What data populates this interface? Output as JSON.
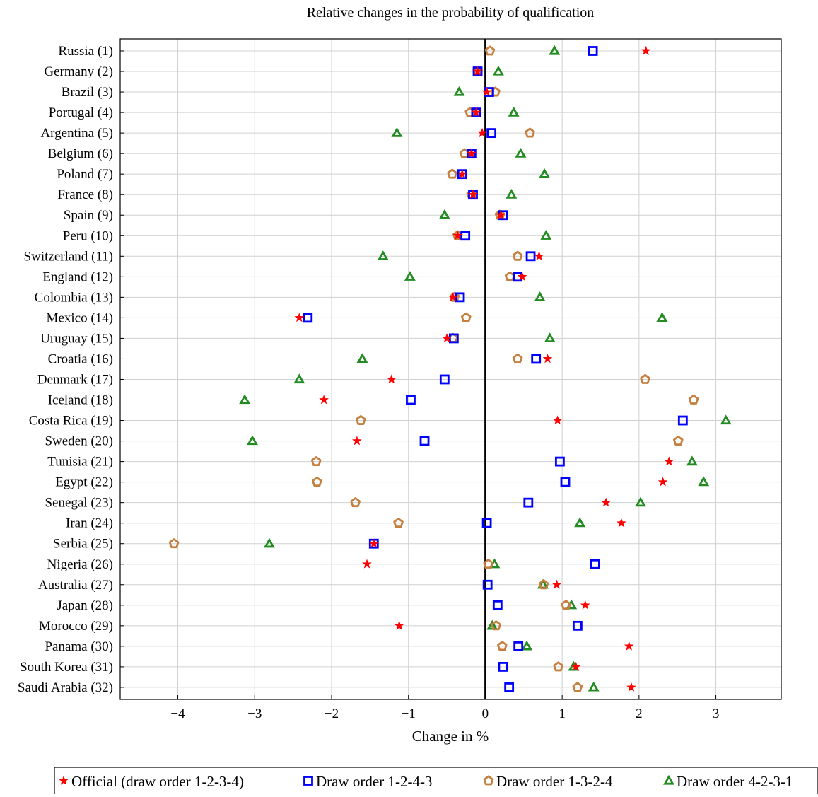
{
  "chart_data": {
    "type": "scatter",
    "title": "Relative changes in the probability of qualification",
    "xlabel": "Change in %",
    "ylabel": "",
    "xlim": [
      -4.75,
      3.85
    ],
    "xticks": [
      -4,
      -3,
      -2,
      -1,
      0,
      1,
      2,
      3
    ],
    "xtick_labels": [
      "−4",
      "−3",
      "−2",
      "−1",
      "0",
      "1",
      "2",
      "3"
    ],
    "grid": true,
    "legend_position": "bottom",
    "categories": [
      "Russia (1)",
      "Germany (2)",
      "Brazil (3)",
      "Portugal (4)",
      "Argentina (5)",
      "Belgium (6)",
      "Poland (7)",
      "France (8)",
      "Spain (9)",
      "Peru (10)",
      "Switzerland (11)",
      "England (12)",
      "Colombia (13)",
      "Mexico (14)",
      "Uruguay (15)",
      "Croatia (16)",
      "Denmark (17)",
      "Iceland (18)",
      "Costa Rica (19)",
      "Sweden (20)",
      "Tunisia (21)",
      "Egypt (22)",
      "Senegal (23)",
      "Iran (24)",
      "Serbia (25)",
      "Nigeria (26)",
      "Australia (27)",
      "Japan (28)",
      "Morocco (29)",
      "Panama (30)",
      "South Korea (31)",
      "Saudi Arabia (32)"
    ],
    "series": [
      {
        "name": "Official (draw order 1-2-3-4)",
        "marker": "star",
        "color": "#ff0000",
        "values": [
          2.09,
          -0.1,
          0.02,
          -0.12,
          -0.04,
          -0.18,
          -0.3,
          -0.16,
          0.2,
          -0.36,
          0.7,
          0.48,
          -0.42,
          -2.42,
          -0.5,
          0.81,
          -1.22,
          -2.1,
          0.94,
          -1.67,
          2.39,
          2.31,
          1.57,
          1.77,
          -1.45,
          -1.54,
          0.93,
          1.3,
          -1.12,
          1.87,
          1.18,
          1.9
        ]
      },
      {
        "name": "Draw order 1-2-4-3",
        "marker": "square",
        "color": "#0000ff",
        "values": [
          1.4,
          -0.1,
          0.05,
          -0.12,
          0.08,
          -0.18,
          -0.3,
          -0.16,
          0.23,
          -0.26,
          0.59,
          0.42,
          -0.33,
          -2.31,
          -0.41,
          0.66,
          -0.53,
          -0.97,
          2.57,
          -0.79,
          0.97,
          1.04,
          0.56,
          0.02,
          -1.45,
          1.43,
          0.03,
          0.16,
          1.2,
          0.43,
          0.23,
          0.31
        ]
      },
      {
        "name": "Draw order 1-3-2-4",
        "marker": "pentagon",
        "color": "#c5803f",
        "values": [
          0.06,
          -0.1,
          0.13,
          -0.2,
          0.58,
          -0.27,
          -0.43,
          -0.18,
          0.19,
          -0.36,
          0.42,
          0.32,
          -0.4,
          -0.25,
          -0.42,
          0.42,
          2.08,
          2.71,
          -1.62,
          2.51,
          -2.2,
          -2.19,
          -1.69,
          -1.13,
          -4.05,
          0.04,
          0.76,
          1.05,
          0.14,
          0.22,
          0.95,
          1.2
        ]
      },
      {
        "name": "Draw order 4-2-3-1",
        "marker": "triangle",
        "color": "#228b22",
        "values": [
          0.9,
          0.17,
          -0.34,
          0.37,
          -1.15,
          0.46,
          0.77,
          0.34,
          -0.53,
          0.79,
          -1.33,
          -0.98,
          0.71,
          2.3,
          0.84,
          -1.6,
          -2.42,
          -3.13,
          3.13,
          -3.03,
          2.69,
          2.84,
          2.02,
          1.23,
          -2.81,
          0.12,
          0.75,
          1.12,
          0.09,
          0.54,
          1.15,
          1.41
        ]
      }
    ]
  }
}
